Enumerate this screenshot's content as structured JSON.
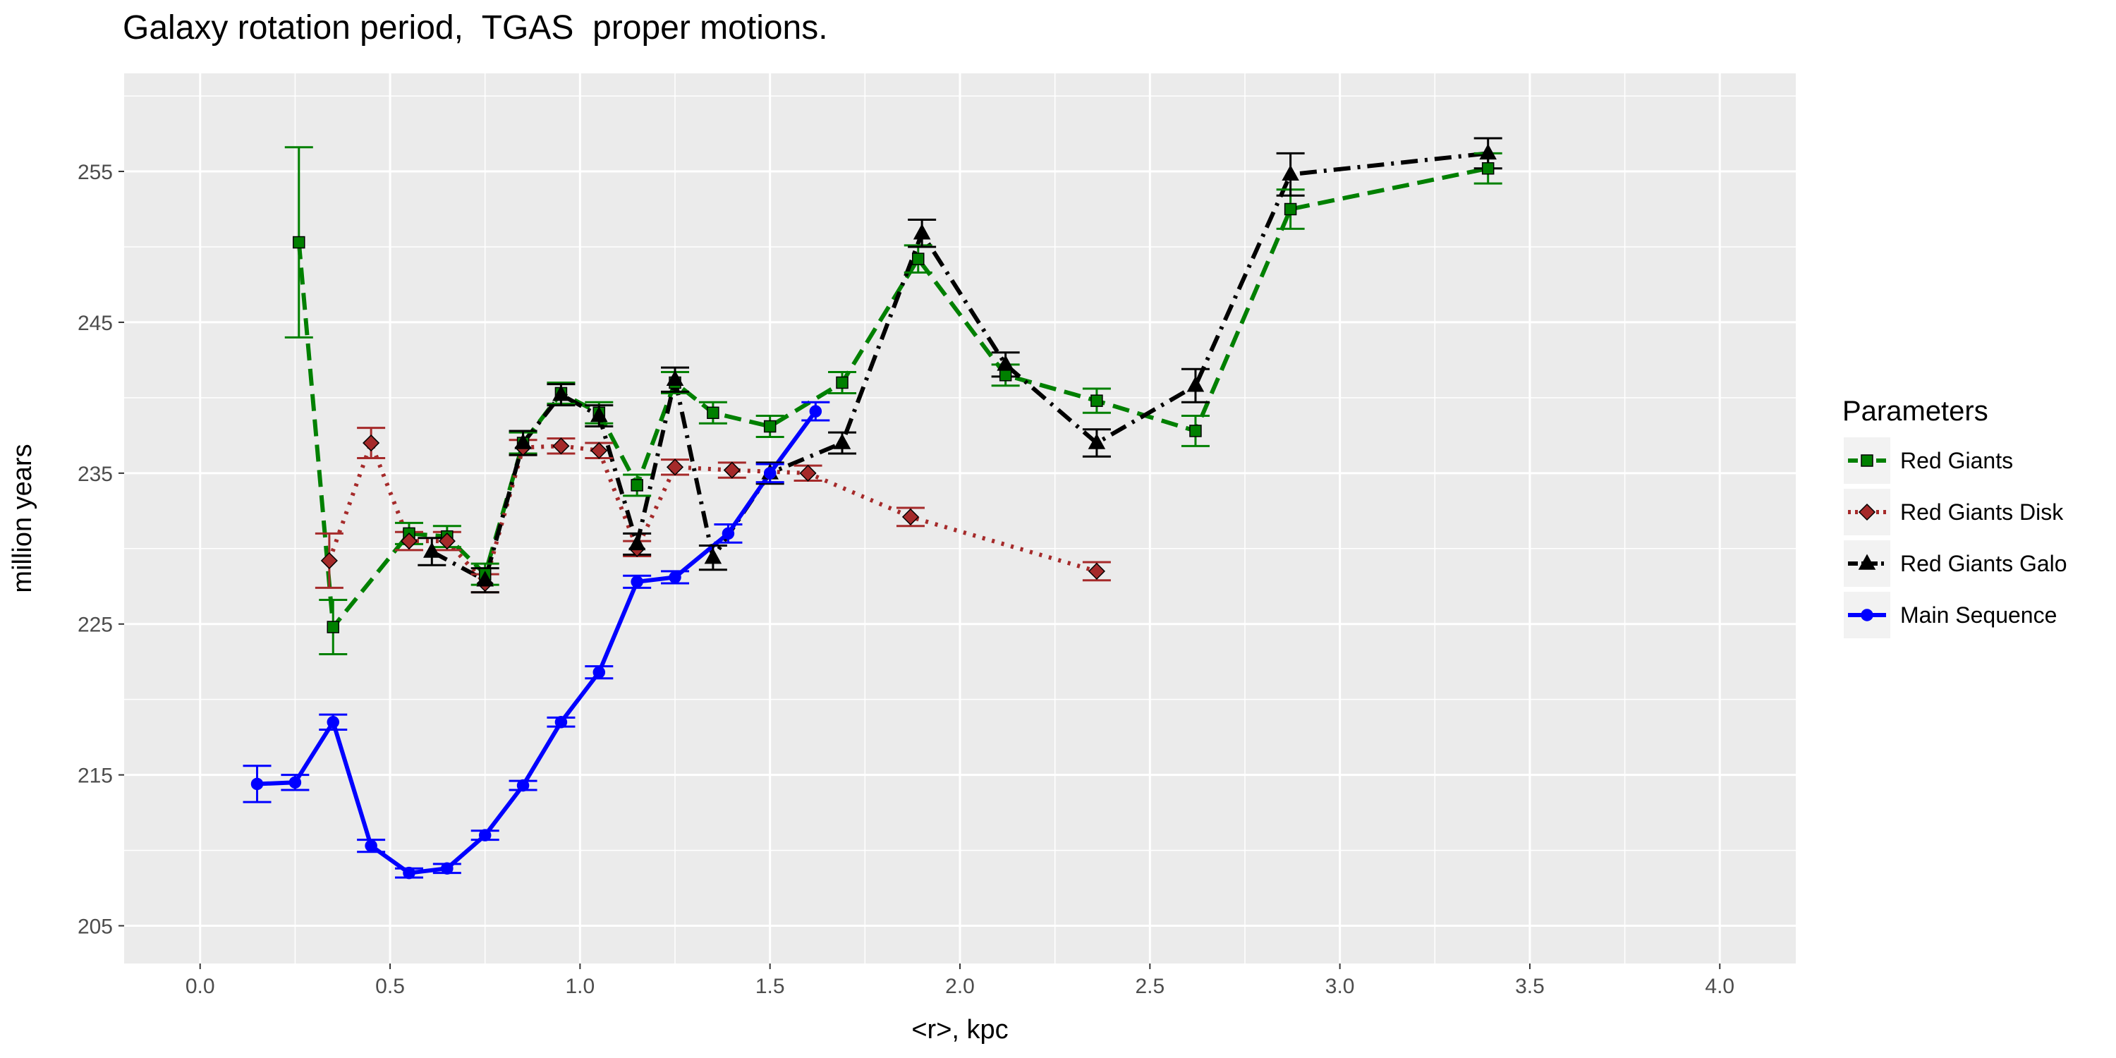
{
  "chart_data": {
    "type": "line",
    "title": "Galaxy rotation period,  TGAS  proper motions.",
    "xlabel": "<r>, kpc",
    "ylabel": "million years",
    "xlim": [
      -0.2,
      4.2
    ],
    "ylim": [
      202.5,
      261.5
    ],
    "xticks": [
      0.0,
      0.5,
      1.0,
      1.5,
      2.0,
      2.5,
      3.0,
      3.5,
      4.0
    ],
    "xtick_labels": [
      "0.0",
      "0.5",
      "1.0",
      "1.5",
      "2.0",
      "2.5",
      "3.0",
      "3.5",
      "4.0"
    ],
    "yticks": [
      205,
      215,
      225,
      235,
      245,
      255
    ],
    "ytick_labels": [
      "205",
      "215",
      "225",
      "235",
      "245",
      "255"
    ],
    "grid": true,
    "legend": {
      "title": "Parameters",
      "position": "right"
    },
    "series": [
      {
        "name": "Red Giants",
        "color": "#008000",
        "dash": "dashed",
        "marker": "square",
        "points": [
          {
            "x": 0.26,
            "y": 250.3,
            "lo": 244.0,
            "hi": 256.6
          },
          {
            "x": 0.35,
            "y": 224.8,
            "lo": 223.0,
            "hi": 226.6
          },
          {
            "x": 0.55,
            "y": 231.0,
            "lo": 230.3,
            "hi": 231.7
          },
          {
            "x": 0.65,
            "y": 230.8,
            "lo": 230.1,
            "hi": 231.5
          },
          {
            "x": 0.75,
            "y": 228.3,
            "lo": 227.6,
            "hi": 229.0
          },
          {
            "x": 0.85,
            "y": 237.0,
            "lo": 236.3,
            "hi": 237.7
          },
          {
            "x": 0.95,
            "y": 240.3,
            "lo": 239.6,
            "hi": 241.0
          },
          {
            "x": 1.05,
            "y": 239.0,
            "lo": 238.3,
            "hi": 239.7
          },
          {
            "x": 1.15,
            "y": 234.2,
            "lo": 233.5,
            "hi": 234.9
          },
          {
            "x": 1.25,
            "y": 241.0,
            "lo": 240.3,
            "hi": 241.7
          },
          {
            "x": 1.35,
            "y": 239.0,
            "lo": 238.3,
            "hi": 239.7
          },
          {
            "x": 1.5,
            "y": 238.1,
            "lo": 237.4,
            "hi": 238.8
          },
          {
            "x": 1.69,
            "y": 241.0,
            "lo": 240.3,
            "hi": 241.7
          },
          {
            "x": 1.89,
            "y": 249.2,
            "lo": 248.3,
            "hi": 250.1
          },
          {
            "x": 2.12,
            "y": 241.5,
            "lo": 240.8,
            "hi": 242.2
          },
          {
            "x": 2.36,
            "y": 239.8,
            "lo": 239.0,
            "hi": 240.6
          },
          {
            "x": 2.62,
            "y": 237.8,
            "lo": 236.8,
            "hi": 238.8
          },
          {
            "x": 2.87,
            "y": 252.5,
            "lo": 251.2,
            "hi": 253.8
          },
          {
            "x": 3.39,
            "y": 255.2,
            "lo": 254.2,
            "hi": 256.2
          }
        ]
      },
      {
        "name": "Red Giants Disk",
        "color": "#a52a2a",
        "dash": "dotted",
        "marker": "diamond",
        "points": [
          {
            "x": 0.34,
            "y": 229.2,
            "lo": 227.4,
            "hi": 231.0
          },
          {
            "x": 0.45,
            "y": 237.0,
            "lo": 236.0,
            "hi": 238.0
          },
          {
            "x": 0.55,
            "y": 230.5,
            "lo": 229.9,
            "hi": 231.1
          },
          {
            "x": 0.65,
            "y": 230.5,
            "lo": 229.9,
            "hi": 231.1
          },
          {
            "x": 0.75,
            "y": 227.7,
            "lo": 227.1,
            "hi": 228.3
          },
          {
            "x": 0.85,
            "y": 236.7,
            "lo": 236.2,
            "hi": 237.2
          },
          {
            "x": 0.95,
            "y": 236.8,
            "lo": 236.3,
            "hi": 237.3
          },
          {
            "x": 1.05,
            "y": 236.5,
            "lo": 236.0,
            "hi": 237.0
          },
          {
            "x": 1.15,
            "y": 230.0,
            "lo": 229.5,
            "hi": 230.5
          },
          {
            "x": 1.25,
            "y": 235.4,
            "lo": 234.9,
            "hi": 235.9
          },
          {
            "x": 1.4,
            "y": 235.2,
            "lo": 234.7,
            "hi": 235.7
          },
          {
            "x": 1.6,
            "y": 235.0,
            "lo": 234.5,
            "hi": 235.5
          },
          {
            "x": 1.87,
            "y": 232.1,
            "lo": 231.5,
            "hi": 232.7
          },
          {
            "x": 2.36,
            "y": 228.5,
            "lo": 227.9,
            "hi": 229.1
          }
        ]
      },
      {
        "name": "Red Giants Galo",
        "color": "#000000",
        "dash": "dashdot",
        "marker": "triangle",
        "points": [
          {
            "x": 0.61,
            "y": 229.8,
            "lo": 228.9,
            "hi": 230.7
          },
          {
            "x": 0.75,
            "y": 227.9,
            "lo": 227.1,
            "hi": 228.7
          },
          {
            "x": 0.85,
            "y": 237.0,
            "lo": 236.2,
            "hi": 237.8
          },
          {
            "x": 0.95,
            "y": 240.2,
            "lo": 239.5,
            "hi": 240.9
          },
          {
            "x": 1.05,
            "y": 238.8,
            "lo": 238.1,
            "hi": 239.5
          },
          {
            "x": 1.15,
            "y": 230.3,
            "lo": 229.6,
            "hi": 231.0
          },
          {
            "x": 1.25,
            "y": 241.2,
            "lo": 240.4,
            "hi": 242.0
          },
          {
            "x": 1.35,
            "y": 229.4,
            "lo": 228.6,
            "hi": 230.2
          },
          {
            "x": 1.5,
            "y": 235.0,
            "lo": 234.3,
            "hi": 235.7
          },
          {
            "x": 1.69,
            "y": 237.0,
            "lo": 236.3,
            "hi": 237.7
          },
          {
            "x": 1.9,
            "y": 250.9,
            "lo": 250.0,
            "hi": 251.8
          },
          {
            "x": 2.12,
            "y": 242.2,
            "lo": 241.4,
            "hi": 243.0
          },
          {
            "x": 2.36,
            "y": 237.0,
            "lo": 236.1,
            "hi": 237.9
          },
          {
            "x": 2.62,
            "y": 240.8,
            "lo": 239.7,
            "hi": 241.9
          },
          {
            "x": 2.87,
            "y": 254.8,
            "lo": 253.4,
            "hi": 256.2
          },
          {
            "x": 3.39,
            "y": 256.2,
            "lo": 255.2,
            "hi": 257.2
          }
        ]
      },
      {
        "name": "Main Sequence",
        "color": "#0000ff",
        "dash": "solid",
        "marker": "circle",
        "points": [
          {
            "x": 0.15,
            "y": 214.4,
            "lo": 213.2,
            "hi": 215.6
          },
          {
            "x": 0.25,
            "y": 214.5,
            "lo": 214.0,
            "hi": 215.0
          },
          {
            "x": 0.35,
            "y": 218.5,
            "lo": 218.0,
            "hi": 219.0
          },
          {
            "x": 0.45,
            "y": 210.3,
            "lo": 209.9,
            "hi": 210.7
          },
          {
            "x": 0.55,
            "y": 208.5,
            "lo": 208.2,
            "hi": 208.8
          },
          {
            "x": 0.65,
            "y": 208.8,
            "lo": 208.5,
            "hi": 209.1
          },
          {
            "x": 0.75,
            "y": 211.0,
            "lo": 210.7,
            "hi": 211.3
          },
          {
            "x": 0.85,
            "y": 214.3,
            "lo": 214.0,
            "hi": 214.6
          },
          {
            "x": 0.95,
            "y": 218.5,
            "lo": 218.2,
            "hi": 218.8
          },
          {
            "x": 1.05,
            "y": 221.8,
            "lo": 221.4,
            "hi": 222.2
          },
          {
            "x": 1.15,
            "y": 227.8,
            "lo": 227.4,
            "hi": 228.2
          },
          {
            "x": 1.25,
            "y": 228.1,
            "lo": 227.7,
            "hi": 228.5
          },
          {
            "x": 1.39,
            "y": 231.0,
            "lo": 230.4,
            "hi": 231.6
          },
          {
            "x": 1.5,
            "y": 235.0,
            "lo": 234.4,
            "hi": 235.6
          },
          {
            "x": 1.62,
            "y": 239.1,
            "lo": 238.5,
            "hi": 239.7
          }
        ]
      }
    ]
  }
}
